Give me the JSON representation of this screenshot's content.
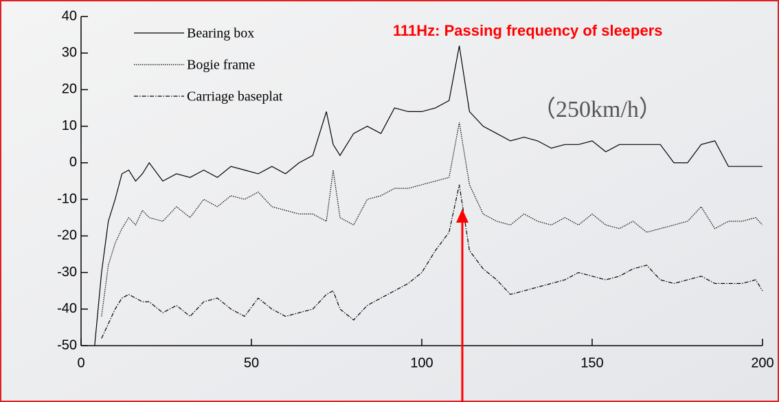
{
  "chart_data": {
    "type": "line",
    "annotations": [
      "111Hz: Passing frequency of sleepers",
      "（250km/h）"
    ],
    "x": [
      4,
      6,
      8,
      10,
      12,
      14,
      16,
      18,
      20,
      24,
      28,
      32,
      36,
      40,
      44,
      48,
      52,
      56,
      60,
      64,
      68,
      72,
      74,
      76,
      80,
      84,
      88,
      92,
      96,
      100,
      104,
      108,
      111,
      114,
      118,
      122,
      126,
      130,
      134,
      138,
      142,
      146,
      150,
      154,
      158,
      162,
      166,
      170,
      174,
      178,
      182,
      186,
      190,
      194,
      198,
      200
    ],
    "series": [
      {
        "name": "Bearing box",
        "color": "#000000",
        "style": "solid",
        "values": [
          -50,
          -30,
          -16,
          -10,
          -3,
          -2,
          -5,
          -3,
          0,
          -5,
          -3,
          -4,
          -2,
          -4,
          -1,
          -2,
          -3,
          -1,
          -3,
          0,
          2,
          14,
          5,
          2,
          8,
          10,
          8,
          15,
          14,
          14,
          15,
          17,
          32,
          14,
          10,
          8,
          6,
          7,
          6,
          4,
          5,
          5,
          6,
          3,
          5,
          5,
          5,
          5,
          0,
          0,
          5,
          6,
          -1,
          -1,
          -1,
          -1
        ]
      },
      {
        "name": "Bogie frame",
        "color": "#000000",
        "style": "dotted",
        "values": [
          null,
          -42,
          -28,
          -22,
          -18,
          -15,
          -17,
          -13,
          -15,
          -16,
          -12,
          -15,
          -10,
          -12,
          -9,
          -10,
          -8,
          -12,
          -13,
          -14,
          -14,
          -16,
          -2,
          -15,
          -17,
          -10,
          -9,
          -7,
          -7,
          -6,
          -5,
          -4,
          11,
          -6,
          -14,
          -16,
          -17,
          -14,
          -16,
          -17,
          -15,
          -17,
          -14,
          -17,
          -18,
          -16,
          -19,
          -18,
          -17,
          -16,
          -12,
          -18,
          -16,
          -16,
          -15,
          -17
        ]
      },
      {
        "name": "Carriage baseplat",
        "color": "#000000",
        "style": "dashdot",
        "values": [
          null,
          -48,
          -44,
          -40,
          -37,
          -36,
          -37,
          -38,
          -38,
          -41,
          -39,
          -42,
          -38,
          -37,
          -40,
          -42,
          -37,
          -40,
          -42,
          -41,
          -40,
          -36,
          -35,
          -40,
          -43,
          -39,
          -37,
          -35,
          -33,
          -30,
          -24,
          -19,
          -6,
          -24,
          -29,
          -32,
          -36,
          -35,
          -34,
          -33,
          -32,
          -30,
          -31,
          -32,
          -31,
          -29,
          -28,
          -32,
          -33,
          -32,
          -31,
          -33,
          -33,
          -33,
          -32,
          -35
        ]
      }
    ],
    "xlim": [
      0,
      200
    ],
    "xticks": [
      0,
      50,
      100,
      150,
      200
    ],
    "ylim": [
      -50,
      40
    ],
    "yticks": [
      -50,
      -40,
      -30,
      -20,
      -10,
      0,
      10,
      20,
      30,
      40
    ],
    "legend": "upper left"
  }
}
